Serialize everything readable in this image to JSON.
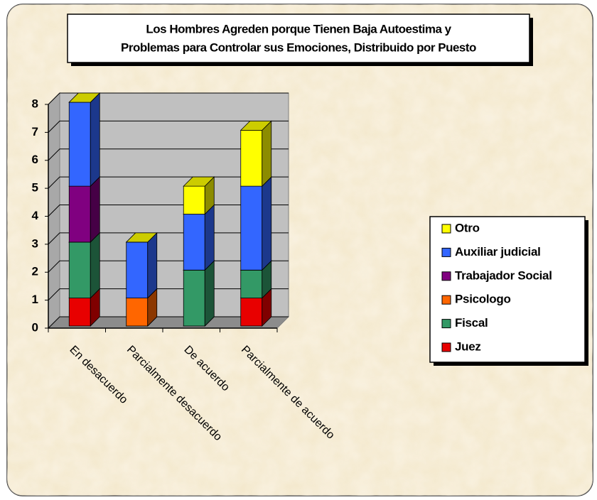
{
  "chart_data": {
    "type": "bar3d_stacked",
    "title": [
      "Los Hombres Agreden porque Tienen Baja Autoestima y",
      "Problemas para Controlar sus Emociones, Distribuido por Puesto"
    ],
    "categories": [
      "En desacuerdo",
      "Parcialmente desacuerdo",
      "De acuerdo",
      "Parcialmente de acuerdo"
    ],
    "series": [
      {
        "name": "Juez",
        "color": "#e80000",
        "values": [
          1,
          0,
          0,
          1
        ]
      },
      {
        "name": "Fiscal",
        "color": "#339966",
        "values": [
          2,
          0,
          2,
          1
        ]
      },
      {
        "name": "Psicologo",
        "color": "#ff6600",
        "values": [
          0,
          1,
          0,
          0
        ]
      },
      {
        "name": "Trabajador Social",
        "color": "#800080",
        "values": [
          2,
          0,
          0,
          0
        ]
      },
      {
        "name": "Auxiliar judicial",
        "color": "#3366ff",
        "values": [
          3,
          2,
          2,
          3
        ]
      },
      {
        "name": "Otro",
        "color": "#ffff00",
        "values": [
          0,
          0,
          1,
          2
        ]
      }
    ],
    "ylim": [
      0,
      8
    ],
    "yticks": [
      0,
      1,
      2,
      3,
      4,
      5,
      6,
      7,
      8
    ],
    "grid": true,
    "legend": "right"
  }
}
